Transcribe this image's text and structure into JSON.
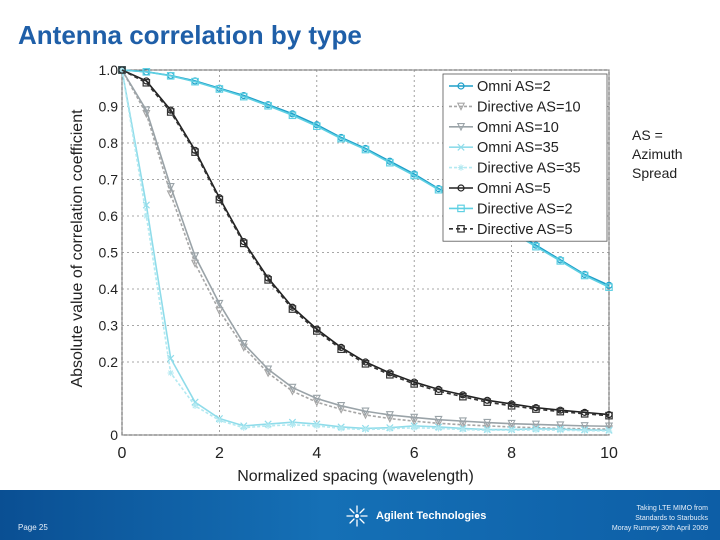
{
  "slide": {
    "title": "Antenna correlation by type",
    "note_lines": [
      "AS =",
      "Azimuth",
      "Spread"
    ]
  },
  "footer": {
    "page": "Page 25",
    "brand": "Agilent Technologies",
    "right_lines": [
      "Taking LTE MIMO from",
      "Standards to Starbucks",
      "Moray Rumney 30th April 2009"
    ]
  },
  "colors": {
    "title": "#1f5fa8",
    "footer_bg": "#0d5ea6"
  },
  "chart_data": {
    "type": "line",
    "title": "",
    "xlabel": "Normalized spacing (wavelength)",
    "ylabel": "Absolute value of correlation coefficient",
    "xlim": [
      0,
      10
    ],
    "ylim": [
      0,
      1.0
    ],
    "xticks": [
      0,
      2,
      4,
      6,
      8,
      10
    ],
    "yticks": [
      0,
      0.2,
      0.3,
      0.4,
      0.5,
      0.6,
      0.7,
      0.8,
      0.9,
      1.0
    ],
    "ytick_labels": [
      "0",
      "0.2",
      "0.3",
      "0.4",
      "0.5",
      "0.6",
      "0.7",
      "0.8",
      "0.9",
      "1.0"
    ],
    "legend_position": "top-right",
    "x": [
      0,
      0.5,
      1,
      1.5,
      2,
      2.5,
      3,
      3.5,
      4,
      4.5,
      5,
      5.5,
      6,
      6.5,
      7,
      7.5,
      8,
      8.5,
      9,
      9.5,
      10
    ],
    "series": [
      {
        "name": "Omni AS=2",
        "color": "#1e9fc9",
        "marker": "circle",
        "dash": "",
        "values": [
          1.0,
          0.995,
          0.985,
          0.97,
          0.95,
          0.93,
          0.905,
          0.88,
          0.85,
          0.815,
          0.785,
          0.75,
          0.715,
          0.675,
          0.64,
          0.6,
          0.56,
          0.52,
          0.48,
          0.44,
          0.41
        ]
      },
      {
        "name": "Directive AS=10",
        "color": "#a6a6a6",
        "marker": "triangle-down",
        "dash": "3,2",
        "values": [
          1.0,
          0.88,
          0.66,
          0.47,
          0.34,
          0.24,
          0.17,
          0.12,
          0.09,
          0.07,
          0.055,
          0.045,
          0.038,
          0.032,
          0.028,
          0.025,
          0.022,
          0.02,
          0.018,
          0.017,
          0.016
        ]
      },
      {
        "name": "Omni AS=10",
        "color": "#9aa3a8",
        "marker": "triangle-down",
        "dash": "",
        "values": [
          1.0,
          0.89,
          0.68,
          0.49,
          0.36,
          0.25,
          0.18,
          0.13,
          0.1,
          0.08,
          0.065,
          0.055,
          0.048,
          0.042,
          0.038,
          0.034,
          0.031,
          0.029,
          0.027,
          0.025,
          0.024
        ]
      },
      {
        "name": "Omni AS=35",
        "color": "#8fdcea",
        "marker": "x",
        "dash": "",
        "values": [
          1.0,
          0.63,
          0.21,
          0.09,
          0.045,
          0.025,
          0.03,
          0.035,
          0.03,
          0.022,
          0.018,
          0.02,
          0.025,
          0.022,
          0.018,
          0.015,
          0.015,
          0.017,
          0.016,
          0.014,
          0.013
        ]
      },
      {
        "name": "Directive AS=35",
        "color": "#b3e9f1",
        "marker": "star",
        "dash": "3,2",
        "values": [
          1.0,
          0.6,
          0.17,
          0.08,
          0.04,
          0.02,
          0.025,
          0.028,
          0.025,
          0.018,
          0.015,
          0.017,
          0.02,
          0.018,
          0.015,
          0.013,
          0.013,
          0.014,
          0.013,
          0.012,
          0.011
        ]
      },
      {
        "name": "Omni AS=5",
        "color": "#222222",
        "marker": "circle",
        "dash": "",
        "values": [
          1.0,
          0.97,
          0.89,
          0.78,
          0.65,
          0.53,
          0.43,
          0.35,
          0.29,
          0.24,
          0.2,
          0.17,
          0.145,
          0.125,
          0.11,
          0.095,
          0.085,
          0.075,
          0.068,
          0.062,
          0.056
        ]
      },
      {
        "name": "Directive AS=2",
        "color": "#5fd0e3",
        "marker": "square",
        "dash": "",
        "values": [
          1.0,
          0.995,
          0.984,
          0.968,
          0.948,
          0.927,
          0.902,
          0.876,
          0.846,
          0.812,
          0.782,
          0.746,
          0.711,
          0.672,
          0.636,
          0.596,
          0.556,
          0.516,
          0.477,
          0.437,
          0.405
        ]
      },
      {
        "name": "Directive AS=5",
        "color": "#333333",
        "marker": "square",
        "dash": "4,3",
        "values": [
          1.0,
          0.965,
          0.885,
          0.775,
          0.645,
          0.525,
          0.425,
          0.345,
          0.285,
          0.235,
          0.195,
          0.165,
          0.14,
          0.12,
          0.105,
          0.09,
          0.08,
          0.071,
          0.064,
          0.058,
          0.053
        ]
      }
    ]
  }
}
